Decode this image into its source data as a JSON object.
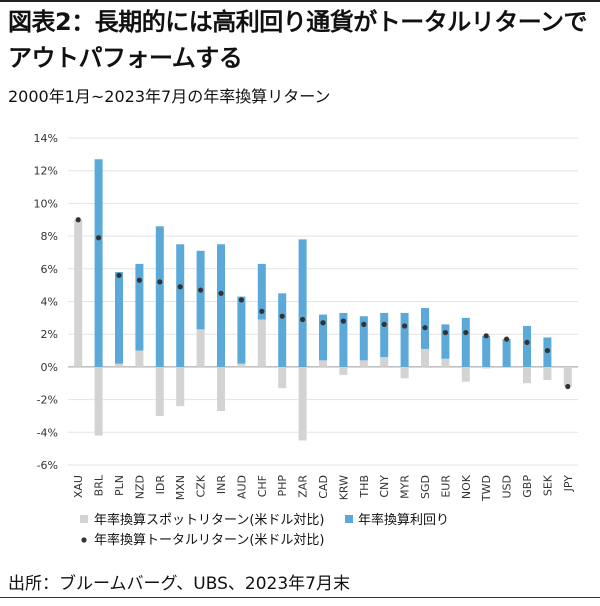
{
  "title": "図表2：長期的には高利回り通貨がトータルリターンでアウトパフォームする",
  "subtitle": "2000年1月~2023年7月の年率換算リターン",
  "source": "出所：ブルームバーグ、UBS、2023年7月末",
  "colors": {
    "spot": "#d3d3d3",
    "yield": "#5aa9d9",
    "total": "#333333",
    "grid": "#e3e3e3"
  },
  "chart_data": {
    "type": "bar",
    "categories": [
      "XAU",
      "BRL",
      "PLN",
      "NZD",
      "IDR",
      "MXN",
      "CZK",
      "INR",
      "AUD",
      "CHF",
      "PHP",
      "ZAR",
      "CAD",
      "KRW",
      "THB",
      "CNY",
      "MYR",
      "SGD",
      "EUR",
      "NOK",
      "TWD",
      "USD",
      "GBP",
      "SEK",
      "JPY"
    ],
    "series": [
      {
        "name": "年率換算スポットリターン(米ドル対比)",
        "role": "spot",
        "values": [
          9.0,
          -4.2,
          0.2,
          1.0,
          -3.0,
          -2.4,
          2.3,
          -2.7,
          0.2,
          2.9,
          -1.3,
          -4.5,
          0.4,
          -0.5,
          0.4,
          0.6,
          -0.7,
          1.1,
          0.5,
          -0.9,
          -0.1,
          0.0,
          -1.0,
          -0.8,
          -1.2
        ]
      },
      {
        "name": "年率換算利回り",
        "role": "yield",
        "values": [
          0.0,
          12.7,
          5.6,
          5.3,
          8.6,
          7.5,
          4.8,
          7.5,
          4.1,
          3.4,
          4.5,
          7.8,
          2.8,
          3.3,
          2.7,
          2.7,
          3.3,
          2.5,
          2.1,
          3.0,
          1.9,
          1.7,
          2.5,
          1.8,
          0.0
        ]
      },
      {
        "name": "年率換算トータルリターン(米ドル対比)",
        "role": "total",
        "values": [
          9.0,
          7.9,
          5.6,
          5.3,
          5.2,
          4.9,
          4.7,
          4.5,
          4.1,
          3.4,
          3.1,
          2.9,
          2.7,
          2.8,
          2.6,
          2.6,
          2.5,
          2.4,
          2.1,
          2.1,
          1.9,
          1.7,
          1.5,
          1.0,
          -1.2
        ]
      }
    ],
    "ylim": [
      -6,
      14
    ],
    "yticks": [
      -6,
      -4,
      -2,
      0,
      2,
      4,
      6,
      8,
      10,
      12,
      14
    ],
    "yticklabels": [
      "-6%",
      "-4%",
      "-2%",
      "0%",
      "2%",
      "4%",
      "6%",
      "8%",
      "10%",
      "12%",
      "14%"
    ],
    "grid": true,
    "legend_position": "bottom"
  }
}
